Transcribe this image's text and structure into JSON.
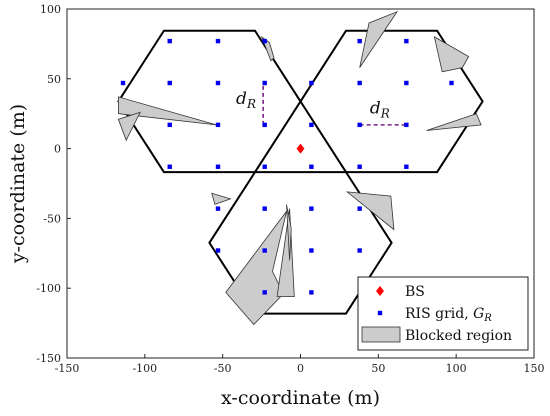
{
  "chart_data": {
    "type": "scatter",
    "xlabel": "x-coordinate (m)",
    "ylabel": "y-coordinate (m)",
    "xlim": [
      -150,
      150
    ],
    "ylim": [
      -150,
      100
    ],
    "xticks": [
      -150,
      -100,
      -50,
      0,
      50,
      100,
      150
    ],
    "yticks": [
      -150,
      -100,
      -50,
      0,
      50,
      100
    ],
    "grid": false,
    "legend_position": "bottom-right",
    "hex_radius": 58.5,
    "cells": [
      {
        "center": [
          -58.5,
          33.8
        ]
      },
      {
        "center": [
          58.5,
          33.8
        ]
      },
      {
        "center": [
          0,
          -67.5
        ]
      }
    ],
    "bs": {
      "name": "BS",
      "x": 0,
      "y": 0,
      "color": "#ff0000"
    },
    "ris_grid": {
      "name": "RIS grid, G_R",
      "color": "#0000ee",
      "points": [
        [
          -84,
          77
        ],
        [
          -53,
          77
        ],
        [
          -23,
          77
        ],
        [
          -114,
          47
        ],
        [
          -84,
          47
        ],
        [
          -53,
          47
        ],
        [
          -23,
          47
        ],
        [
          -84,
          17
        ],
        [
          -53,
          17
        ],
        [
          -23,
          17
        ],
        [
          -84,
          -13
        ],
        [
          -53,
          -13
        ],
        [
          -23,
          -13
        ],
        [
          38,
          77
        ],
        [
          68,
          77
        ],
        [
          7,
          47
        ],
        [
          38,
          47
        ],
        [
          68,
          47
        ],
        [
          97,
          47
        ],
        [
          7,
          17
        ],
        [
          38,
          17
        ],
        [
          68,
          17
        ],
        [
          7,
          -13
        ],
        [
          38,
          -13
        ],
        [
          68,
          -13
        ],
        [
          -53,
          -43
        ],
        [
          -23,
          -43
        ],
        [
          7,
          -43
        ],
        [
          38,
          -43
        ],
        [
          -53,
          -73
        ],
        [
          -23,
          -73
        ],
        [
          7,
          -73
        ],
        [
          38,
          -73
        ],
        [
          -23,
          -103
        ],
        [
          7,
          -103
        ]
      ]
    },
    "blocked_regions": {
      "name": "Blocked region",
      "color": "#cccccc",
      "polygons": [
        [
          [
            -117,
            37
          ],
          [
            -117,
            25
          ],
          [
            -54,
            17
          ]
        ],
        [
          [
            -117,
            21
          ],
          [
            -112,
            6
          ],
          [
            -103,
            26
          ]
        ],
        [
          [
            -25,
            80
          ],
          [
            -20,
            76
          ],
          [
            -17,
            65
          ],
          [
            -19,
            63
          ]
        ],
        [
          [
            44,
            90
          ],
          [
            62,
            98
          ],
          [
            38,
            58
          ]
        ],
        [
          [
            86,
            80
          ],
          [
            108,
            66
          ],
          [
            104,
            58
          ],
          [
            91,
            55
          ]
        ],
        [
          [
            81,
            13
          ],
          [
            113,
            25
          ],
          [
            116,
            17
          ]
        ],
        [
          [
            30,
            -31
          ],
          [
            58,
            -34
          ],
          [
            60,
            -58
          ]
        ],
        [
          [
            -57,
            -32
          ],
          [
            -45,
            -36
          ],
          [
            -55,
            -40
          ]
        ],
        [
          [
            -48,
            -103
          ],
          [
            -9,
            -45
          ],
          [
            -18,
            -88
          ],
          [
            -11,
            -104
          ],
          [
            -30,
            -126
          ]
        ],
        [
          [
            -7,
            -43
          ],
          [
            -4,
            -106
          ],
          [
            -15,
            -106
          ]
        ],
        [
          [
            -9,
            -40
          ],
          [
            -6,
            -57
          ],
          [
            -7,
            -80
          ]
        ]
      ]
    },
    "annotations": [
      {
        "text": "d",
        "sub": "R",
        "from": [
          -24,
          17
        ],
        "to": [
          -24,
          47
        ],
        "label_at": [
          -35,
          32
        ]
      },
      {
        "text": "d",
        "sub": "R",
        "from": [
          38,
          17
        ],
        "to": [
          67,
          17
        ],
        "label_at": [
          51,
          25
        ]
      }
    ]
  }
}
